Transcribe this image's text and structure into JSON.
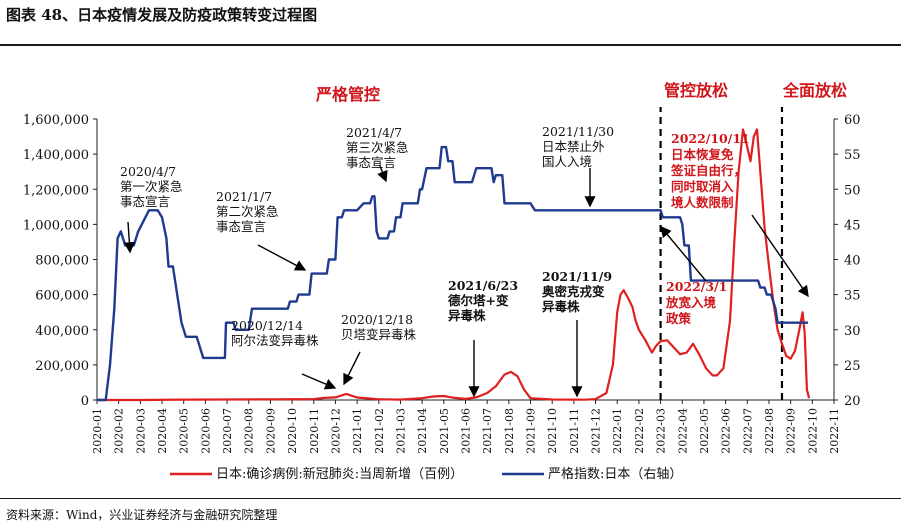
{
  "figure": {
    "title": "图表 48、日本疫情发展及防疫政策转变过程图",
    "source": "资料来源：Wind，兴业证券经济与金融研究院整理"
  },
  "colors": {
    "cases": "#e02020",
    "index": "#1f3a8f",
    "phase": "#d0161b",
    "axis": "#222222"
  },
  "chart_data": {
    "type": "line",
    "x_categories": [
      "2020-01",
      "2020-02",
      "2020-03",
      "2020-04",
      "2020-05",
      "2020-06",
      "2020-07",
      "2020-08",
      "2020-09",
      "2020-10",
      "2020-11",
      "2020-12",
      "2021-01",
      "2021-02",
      "2021-03",
      "2021-04",
      "2021-05",
      "2021-06",
      "2021-07",
      "2021-08",
      "2021-09",
      "2021-10",
      "2021-11",
      "2021-12",
      "2022-01",
      "2022-02",
      "2022-03",
      "2022-04",
      "2022-05",
      "2022-06",
      "2022-07",
      "2022-08",
      "2022-09",
      "2022-10",
      "2022-11"
    ],
    "y_left": {
      "lim": [
        0,
        1600000
      ],
      "ticks": [
        "0",
        "200,000",
        "400,000",
        "600,000",
        "800,000",
        "1,000,000",
        "1,200,000",
        "1,400,000",
        "1,600,000"
      ]
    },
    "y_right": {
      "lim": [
        20,
        60
      ],
      "ticks": [
        "20",
        "25",
        "30",
        "35",
        "40",
        "45",
        "50",
        "55",
        "60"
      ]
    },
    "series": [
      {
        "name": "日本:确诊病例:新冠肺炎:当周新增（百例）",
        "axis": "left",
        "points": [
          [
            0,
            0
          ],
          [
            2,
            0
          ],
          [
            4,
            2000
          ],
          [
            6,
            3000
          ],
          [
            8,
            4000
          ],
          [
            10,
            5000
          ],
          [
            10.5,
            12000
          ],
          [
            11,
            15000
          ],
          [
            11.5,
            35000
          ],
          [
            12,
            14000
          ],
          [
            12.5,
            9000
          ],
          [
            13,
            4000
          ],
          [
            14,
            2000
          ],
          [
            15,
            10000
          ],
          [
            15.5,
            20000
          ],
          [
            16,
            23000
          ],
          [
            16.5,
            12000
          ],
          [
            17,
            6000
          ],
          [
            17.5,
            15000
          ],
          [
            18,
            40000
          ],
          [
            18.4,
            78000
          ],
          [
            18.8,
            145000
          ],
          [
            19.1,
            160000
          ],
          [
            19.4,
            135000
          ],
          [
            19.7,
            60000
          ],
          [
            20,
            10000
          ],
          [
            21,
            3000
          ],
          [
            22,
            2000
          ],
          [
            22.5,
            1500
          ],
          [
            23,
            5000
          ],
          [
            23.5,
            40000
          ],
          [
            23.8,
            200000
          ],
          [
            24,
            500000
          ],
          [
            24.15,
            600000
          ],
          [
            24.3,
            625000
          ],
          [
            24.5,
            580000
          ],
          [
            24.7,
            530000
          ],
          [
            24.85,
            450000
          ],
          [
            25,
            400000
          ],
          [
            25.3,
            340000
          ],
          [
            25.6,
            270000
          ],
          [
            25.8,
            310000
          ],
          [
            26,
            335000
          ],
          [
            26.3,
            340000
          ],
          [
            26.6,
            300000
          ],
          [
            26.9,
            260000
          ],
          [
            27.2,
            270000
          ],
          [
            27.5,
            320000
          ],
          [
            27.8,
            255000
          ],
          [
            28.1,
            180000
          ],
          [
            28.4,
            140000
          ],
          [
            28.6,
            140000
          ],
          [
            28.9,
            180000
          ],
          [
            29.2,
            450000
          ],
          [
            29.4,
            900000
          ],
          [
            29.6,
            1300000
          ],
          [
            29.8,
            1540000
          ],
          [
            30,
            1440000
          ],
          [
            30.15,
            1360000
          ],
          [
            30.3,
            1500000
          ],
          [
            30.45,
            1540000
          ],
          [
            30.6,
            1300000
          ],
          [
            30.8,
            980000
          ],
          [
            31,
            760000
          ],
          [
            31.2,
            560000
          ],
          [
            31.4,
            400000
          ],
          [
            31.6,
            320000
          ],
          [
            31.8,
            250000
          ],
          [
            32,
            235000
          ],
          [
            32.2,
            280000
          ],
          [
            32.4,
            400000
          ],
          [
            32.55,
            500000
          ],
          [
            32.65,
            380000
          ],
          [
            32.75,
            60000
          ],
          [
            32.85,
            10000
          ]
        ]
      },
      {
        "name": "严格指数:日本（右轴）",
        "axis": "right",
        "points": [
          [
            0,
            20
          ],
          [
            0.4,
            20
          ],
          [
            0.6,
            25
          ],
          [
            0.8,
            33
          ],
          [
            0.95,
            43
          ],
          [
            1.1,
            44
          ],
          [
            1.3,
            42
          ],
          [
            1.7,
            42
          ],
          [
            1.9,
            44
          ],
          [
            2.4,
            47
          ],
          [
            2.8,
            47
          ],
          [
            3,
            46
          ],
          [
            3.2,
            43
          ],
          [
            3.3,
            39
          ],
          [
            3.5,
            39
          ],
          [
            3.9,
            31
          ],
          [
            4.1,
            29
          ],
          [
            4.6,
            29
          ],
          [
            4.9,
            26
          ],
          [
            5.9,
            26
          ],
          [
            5.95,
            31
          ],
          [
            6.3,
            31
          ],
          [
            6.4,
            30
          ],
          [
            7.0,
            30
          ],
          [
            7.15,
            33
          ],
          [
            8.7,
            33
          ],
          [
            8.8,
            33
          ],
          [
            8.9,
            34
          ],
          [
            9.2,
            34
          ],
          [
            9.3,
            35
          ],
          [
            9.8,
            35
          ],
          [
            9.9,
            38
          ],
          [
            10.6,
            38
          ],
          [
            10.7,
            40
          ],
          [
            11.0,
            40
          ],
          [
            11.1,
            46
          ],
          [
            11.3,
            46
          ],
          [
            11.4,
            47
          ],
          [
            11.8,
            47
          ],
          [
            12.0,
            47
          ],
          [
            12.3,
            48
          ],
          [
            12.4,
            48
          ],
          [
            12.6,
            48
          ],
          [
            12.7,
            49
          ],
          [
            12.8,
            49
          ],
          [
            12.9,
            44
          ],
          [
            13.0,
            43
          ],
          [
            13.4,
            43
          ],
          [
            13.5,
            44
          ],
          [
            13.7,
            44
          ],
          [
            13.8,
            46
          ],
          [
            14.0,
            46
          ],
          [
            14.1,
            48
          ],
          [
            14.8,
            48
          ],
          [
            14.9,
            50
          ],
          [
            15.0,
            50
          ],
          [
            15.2,
            53
          ],
          [
            15.8,
            53
          ],
          [
            15.9,
            56
          ],
          [
            16.1,
            56
          ],
          [
            16.2,
            54
          ],
          [
            16.4,
            54
          ],
          [
            16.5,
            51
          ],
          [
            17.3,
            51
          ],
          [
            17.5,
            53
          ],
          [
            18.2,
            53
          ],
          [
            18.3,
            51
          ],
          [
            18.4,
            52
          ],
          [
            18.7,
            52
          ],
          [
            18.8,
            48
          ],
          [
            19.0,
            48
          ],
          [
            20.0,
            48
          ],
          [
            20.2,
            47
          ],
          [
            22.8,
            47
          ],
          [
            22.9,
            47
          ],
          [
            26.0,
            47
          ],
          [
            26.1,
            46
          ],
          [
            26.9,
            46
          ],
          [
            27.0,
            45
          ],
          [
            27.1,
            42
          ],
          [
            27.3,
            42
          ],
          [
            27.4,
            37
          ],
          [
            30.2,
            37
          ],
          [
            30.3,
            37
          ],
          [
            30.5,
            37
          ],
          [
            30.6,
            36
          ],
          [
            30.8,
            36
          ],
          [
            30.9,
            35
          ],
          [
            31.1,
            35
          ],
          [
            31.3,
            33
          ],
          [
            31.4,
            31
          ],
          [
            32.8,
            31
          ]
        ]
      }
    ],
    "phases": [
      {
        "label": "严格管控"
      },
      {
        "label": "管控放松"
      },
      {
        "label": "全面放松"
      }
    ],
    "annotations": [
      {
        "key": "a1",
        "lines": [
          "2020/4/7",
          "第一次紧急",
          "事态宣言"
        ],
        "bold": false,
        "color": "#111111"
      },
      {
        "key": "a2",
        "lines": [
          "2021/1/7",
          "第二次紧急",
          "事态宣言"
        ],
        "bold": false,
        "color": "#111111"
      },
      {
        "key": "a3",
        "lines": [
          "2021/4/7",
          "第三次紧急",
          "事态宣言"
        ],
        "bold": false,
        "color": "#111111"
      },
      {
        "key": "a4",
        "lines": [
          "2021/11/30",
          "日本禁止外",
          "国人入境"
        ],
        "bold": false,
        "color": "#111111"
      },
      {
        "key": "a5",
        "lines": [
          "2020/12/14",
          "阿尔法变异毒株"
        ],
        "bold": false,
        "color": "#111111"
      },
      {
        "key": "a6",
        "lines": [
          "2020/12/18",
          "贝塔变异毒株"
        ],
        "bold": false,
        "color": "#111111"
      },
      {
        "key": "a7",
        "lines": [
          "2021/6/23",
          "德尔塔+变",
          "异毒株"
        ],
        "bold": true,
        "color": "#111111"
      },
      {
        "key": "a8",
        "lines": [
          "2021/11/9",
          "奥密克戎变",
          "异毒株"
        ],
        "bold": true,
        "color": "#111111"
      },
      {
        "key": "a9",
        "lines": [
          "2022/10/11",
          "日本恢复免",
          "签证自由行，",
          "同时取消入",
          "境人数限制"
        ],
        "bold": true,
        "color": "#d0161b"
      },
      {
        "key": "a10",
        "lines": [
          "2022/3/1",
          "放宽入境",
          "政策"
        ],
        "bold": true,
        "color": "#d0161b"
      }
    ],
    "legend": {
      "placement": "bottom"
    }
  }
}
